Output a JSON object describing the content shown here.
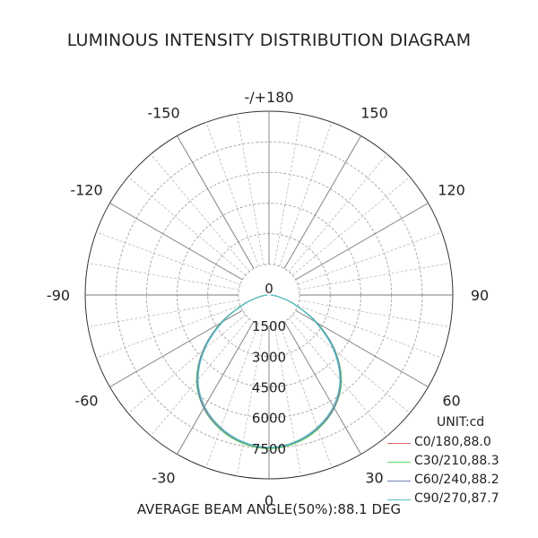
{
  "title": "LUMINOUS INTENSITY DISTRIBUTION DIAGRAM",
  "unit_label": "UNIT:cd",
  "beam_angle_text": "AVERAGE BEAM ANGLE(50%):88.1 DEG",
  "chart_data": {
    "type": "polar",
    "title": "LUMINOUS INTENSITY DISTRIBUTION DIAGRAM",
    "radial_unit": "cd",
    "radial_ticks": [
      0,
      1500,
      3000,
      4500,
      6000,
      7500
    ],
    "radial_max": 9000,
    "angle_labels": [
      {
        "angle": 180,
        "text": "-/+180"
      },
      {
        "angle": 150,
        "text": "150"
      },
      {
        "angle": 120,
        "text": "120"
      },
      {
        "angle": 90,
        "text": "90"
      },
      {
        "angle": 60,
        "text": "60"
      },
      {
        "angle": 30,
        "text": "30"
      },
      {
        "angle": 0,
        "text": "0"
      },
      {
        "angle": -30,
        "text": "-30"
      },
      {
        "angle": -60,
        "text": "-60"
      },
      {
        "angle": -90,
        "text": "-90"
      },
      {
        "angle": -120,
        "text": "-120"
      },
      {
        "angle": -150,
        "text": "-150"
      }
    ],
    "angles": [
      0,
      10,
      20,
      30,
      40,
      50,
      60,
      70,
      80,
      90
    ],
    "series": [
      {
        "name": "C0/180,88.0",
        "color": "#e06666",
        "values": [
          7500,
          7350,
          6950,
          6350,
          5450,
          4150,
          2650,
          1300,
          450,
          80
        ]
      },
      {
        "name": "C30/210,88.3",
        "color": "#5ee05e",
        "values": [
          7520,
          7380,
          7000,
          6400,
          5520,
          4230,
          2720,
          1350,
          480,
          90
        ]
      },
      {
        "name": "C60/240,88.2",
        "color": "#6d7fb5",
        "values": [
          7480,
          7340,
          6960,
          6380,
          5480,
          4200,
          2700,
          1330,
          470,
          85
        ]
      },
      {
        "name": "C90/270,87.7",
        "color": "#4fc4c4",
        "values": [
          7460,
          7300,
          6900,
          6300,
          5400,
          4100,
          2600,
          1280,
          440,
          75
        ]
      }
    ]
  }
}
